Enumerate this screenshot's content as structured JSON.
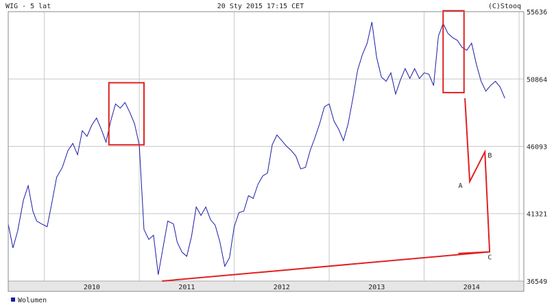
{
  "header": {
    "title": "WIG - 5 lat",
    "timestamp": "20 Sty 2015 17:15 CET",
    "source": "(C)Stooq"
  },
  "legend": {
    "volume_label": "Wolumen"
  },
  "colors": {
    "series": "#1a1aa8",
    "annotation": "#e02020",
    "grid": "#c8c8c8",
    "axis_band": "#e6e6e6",
    "legend_marker": "#1a1aa8"
  },
  "chart_data": {
    "type": "line",
    "ylabel": "",
    "xlabel": "",
    "ylim": [
      36549,
      55636
    ],
    "yticks": [
      36549,
      41321,
      46093,
      50864,
      55636
    ],
    "xlim": [
      2009.62,
      2015.05
    ],
    "xticks": [
      "2010",
      "2011",
      "2012",
      "2013",
      "2014"
    ],
    "grid": true,
    "series": [
      {
        "name": "",
        "x": [
          2009.62,
          2009.67,
          2009.72,
          2009.78,
          2009.83,
          2009.88,
          2009.92,
          2009.97,
          2010.03,
          2010.08,
          2010.13,
          2010.19,
          2010.25,
          2010.3,
          2010.35,
          2010.4,
          2010.45,
          2010.5,
          2010.55,
          2010.6,
          2010.65,
          2010.7,
          2010.75,
          2010.8,
          2010.85,
          2010.9,
          2010.95,
          2011.0,
          2011.05,
          2011.1,
          2011.15,
          2011.2,
          2011.25,
          2011.3,
          2011.36,
          2011.4,
          2011.45,
          2011.5,
          2011.55,
          2011.6,
          2011.65,
          2011.7,
          2011.75,
          2011.8,
          2011.85,
          2011.9,
          2011.95,
          2012.0,
          2012.05,
          2012.1,
          2012.15,
          2012.2,
          2012.25,
          2012.3,
          2012.35,
          2012.4,
          2012.45,
          2012.5,
          2012.55,
          2012.6,
          2012.65,
          2012.7,
          2012.75,
          2012.8,
          2012.85,
          2012.9,
          2012.95,
          2013.0,
          2013.05,
          2013.1,
          2013.15,
          2013.2,
          2013.25,
          2013.3,
          2013.35,
          2013.4,
          2013.45,
          2013.5,
          2013.55,
          2013.6,
          2013.65,
          2013.7,
          2013.75,
          2013.8,
          2013.85,
          2013.9,
          2013.95,
          2014.0,
          2014.05,
          2014.1,
          2014.15,
          2014.2,
          2014.25,
          2014.3,
          2014.35,
          2014.4,
          2014.45,
          2014.5,
          2014.55,
          2014.6,
          2014.65,
          2014.7,
          2014.75,
          2014.8,
          2014.85
        ],
        "values": [
          40600,
          38900,
          40100,
          42300,
          43300,
          41500,
          40800,
          40600,
          40400,
          42100,
          43900,
          44600,
          45800,
          46300,
          45500,
          47200,
          46800,
          47600,
          48100,
          47300,
          46400,
          47900,
          49100,
          48800,
          49200,
          48500,
          47700,
          46200,
          40200,
          39500,
          39800,
          37000,
          38900,
          40800,
          40600,
          39300,
          38600,
          38300,
          39700,
          41800,
          41200,
          41800,
          40900,
          40500,
          39300,
          37600,
          38200,
          40400,
          41400,
          41500,
          42600,
          42400,
          43400,
          44000,
          44200,
          46200,
          46900,
          46500,
          46100,
          45800,
          45400,
          44500,
          44600,
          45800,
          46700,
          47700,
          48900,
          49100,
          47900,
          47300,
          46500,
          47700,
          49500,
          51500,
          52600,
          53400,
          54900,
          52400,
          51000,
          50700,
          51300,
          49800,
          50800,
          51600,
          50900,
          51600,
          50900,
          51300,
          51200,
          50400,
          53900,
          54800,
          54100,
          53800,
          53600,
          53100,
          52900,
          53400,
          51900,
          50700,
          50000,
          50400,
          50700,
          50300,
          49500
        ]
      }
    ],
    "annotations": {
      "boxes": [
        {
          "x0": 2010.68,
          "x1": 2011.05,
          "y0": 46200,
          "y1": 50600
        },
        {
          "x0": 2014.2,
          "x1": 2014.42,
          "y0": 49900,
          "y1": 55700
        }
      ],
      "lines": [
        {
          "x": [
            2014.43,
            2014.48,
            2014.64,
            2014.69,
            2014.36
          ],
          "y": [
            49500,
            43600,
            45700,
            38620,
            38500
          ]
        },
        {
          "x": [
            2011.24,
            2014.69
          ],
          "y": [
            36549,
            38620
          ]
        }
      ],
      "labels": [
        {
          "text": "A",
          "x": 2014.36,
          "y": 43150
        },
        {
          "text": "B",
          "x": 2014.67,
          "y": 45300
        },
        {
          "text": "C",
          "x": 2014.67,
          "y": 38080
        }
      ]
    }
  }
}
